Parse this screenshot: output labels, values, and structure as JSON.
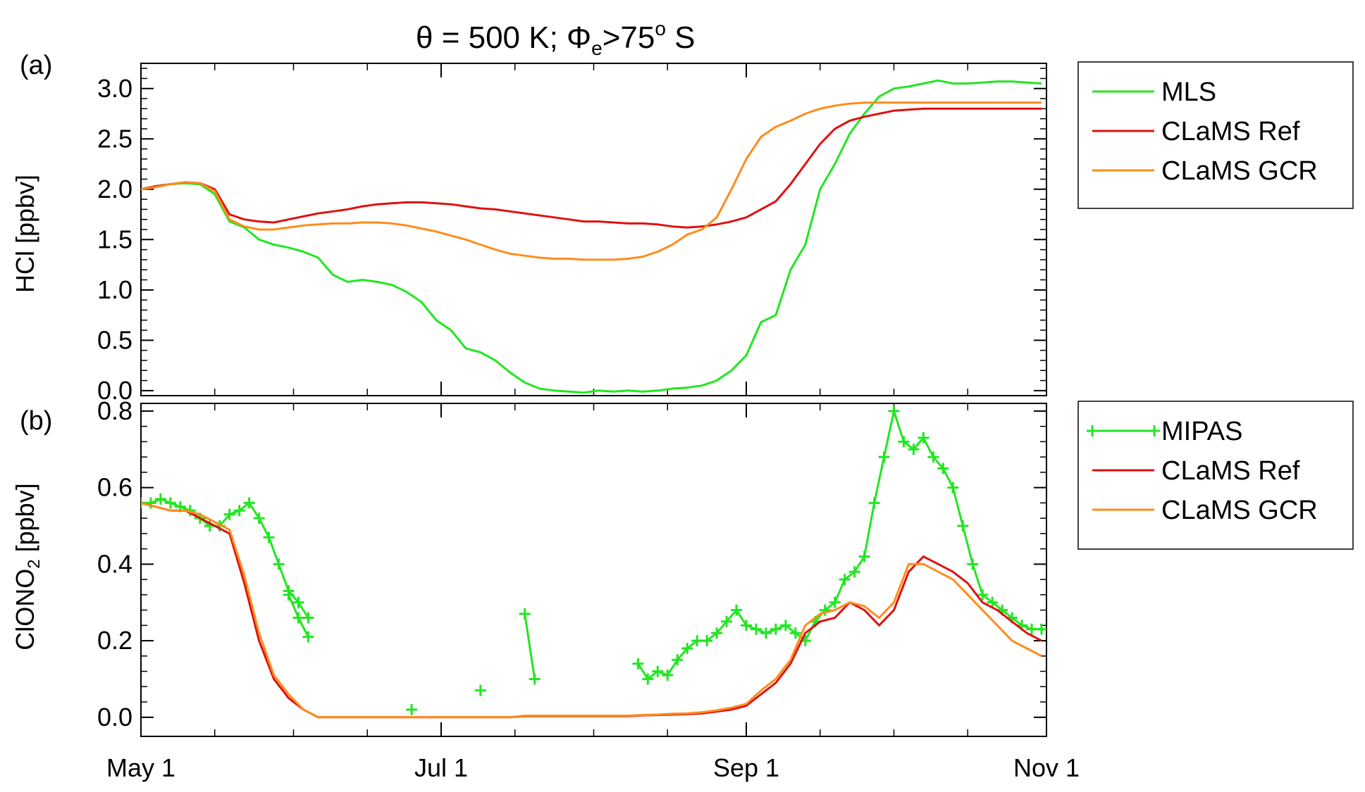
{
  "title": {
    "prefix": "θ = 500 K; Φ",
    "phi_sub": "e",
    "mid": ">75",
    "deg": "o",
    "suffix": " S"
  },
  "colors": {
    "mls": "#22e622",
    "mipas": "#22e622",
    "ref": "#e01010",
    "gcr": "#ff8c1a"
  },
  "chart_data": [
    {
      "panel_tag": "(a)",
      "type": "line",
      "ylabel": "HCl [ppbv]",
      "ylim": [
        -0.05,
        3.25
      ],
      "yticks": [
        "0.0",
        "0.5",
        "1.0",
        "1.5",
        "2.0",
        "2.5",
        "3.0"
      ],
      "xticks": [
        "May 1",
        "Jul 1",
        "Sep 1",
        "Nov 1"
      ],
      "legend_position": "right",
      "series": [
        {
          "name": "MLS",
          "color_key": "mls",
          "x": [
            0,
            3,
            6,
            9,
            12,
            15,
            18,
            21,
            24,
            27,
            30,
            33,
            36,
            39,
            42,
            45,
            48,
            51,
            54,
            57,
            60,
            63,
            66,
            69,
            72,
            75,
            78,
            81,
            84,
            87,
            90,
            93,
            96,
            99,
            102,
            105,
            108,
            111,
            114,
            117,
            120,
            123,
            126,
            129,
            132,
            135,
            138,
            141,
            144,
            147,
            150,
            153,
            156,
            159,
            162,
            165,
            168,
            171,
            174,
            177,
            180,
            183
          ],
          "y": [
            2.0,
            2.03,
            2.05,
            2.06,
            2.05,
            1.95,
            1.68,
            1.62,
            1.5,
            1.45,
            1.42,
            1.38,
            1.32,
            1.15,
            1.08,
            1.1,
            1.08,
            1.05,
            0.98,
            0.88,
            0.7,
            0.6,
            0.42,
            0.38,
            0.3,
            0.18,
            0.08,
            0.02,
            0.0,
            -0.01,
            -0.02,
            0.0,
            -0.01,
            0.0,
            -0.01,
            0.0,
            0.02,
            0.03,
            0.05,
            0.1,
            0.2,
            0.35,
            0.68,
            0.75,
            1.2,
            1.45,
            2.0,
            2.25,
            2.55,
            2.75,
            2.92,
            3.0,
            3.02,
            3.05,
            3.08,
            3.05,
            3.05,
            3.06,
            3.07,
            3.07,
            3.06,
            3.05
          ]
        },
        {
          "name": "CLaMS Ref",
          "color_key": "ref",
          "x": [
            0,
            3,
            6,
            9,
            12,
            15,
            18,
            21,
            24,
            27,
            30,
            33,
            36,
            39,
            42,
            45,
            48,
            51,
            54,
            57,
            60,
            63,
            66,
            69,
            72,
            75,
            78,
            81,
            84,
            87,
            90,
            93,
            96,
            99,
            102,
            105,
            108,
            111,
            114,
            117,
            120,
            123,
            126,
            129,
            132,
            135,
            138,
            141,
            144,
            147,
            150,
            153,
            156,
            159,
            162,
            165,
            168,
            171,
            174,
            177,
            180,
            183
          ],
          "y": [
            2.0,
            2.03,
            2.05,
            2.07,
            2.06,
            2.0,
            1.75,
            1.7,
            1.68,
            1.67,
            1.7,
            1.73,
            1.76,
            1.78,
            1.8,
            1.83,
            1.85,
            1.86,
            1.87,
            1.87,
            1.86,
            1.85,
            1.83,
            1.81,
            1.8,
            1.78,
            1.76,
            1.74,
            1.72,
            1.7,
            1.68,
            1.68,
            1.67,
            1.66,
            1.66,
            1.65,
            1.63,
            1.62,
            1.63,
            1.65,
            1.68,
            1.72,
            1.8,
            1.88,
            2.05,
            2.25,
            2.45,
            2.6,
            2.68,
            2.72,
            2.75,
            2.78,
            2.79,
            2.8,
            2.8,
            2.8,
            2.8,
            2.8,
            2.8,
            2.8,
            2.8,
            2.8
          ]
        },
        {
          "name": "CLaMS GCR",
          "color_key": "gcr",
          "x": [
            0,
            3,
            6,
            9,
            12,
            15,
            18,
            21,
            24,
            27,
            30,
            33,
            36,
            39,
            42,
            45,
            48,
            51,
            54,
            57,
            60,
            63,
            66,
            69,
            72,
            75,
            78,
            81,
            84,
            87,
            90,
            93,
            96,
            99,
            102,
            105,
            108,
            111,
            114,
            117,
            120,
            123,
            126,
            129,
            132,
            135,
            138,
            141,
            144,
            147,
            150,
            153,
            156,
            159,
            162,
            165,
            168,
            171,
            174,
            177,
            180,
            183
          ],
          "y": [
            2.0,
            2.02,
            2.05,
            2.07,
            2.06,
            1.98,
            1.7,
            1.63,
            1.6,
            1.6,
            1.62,
            1.64,
            1.65,
            1.66,
            1.66,
            1.67,
            1.67,
            1.66,
            1.64,
            1.61,
            1.58,
            1.54,
            1.5,
            1.45,
            1.4,
            1.36,
            1.34,
            1.32,
            1.31,
            1.31,
            1.3,
            1.3,
            1.3,
            1.31,
            1.33,
            1.38,
            1.45,
            1.55,
            1.6,
            1.72,
            2.0,
            2.3,
            2.52,
            2.62,
            2.68,
            2.75,
            2.8,
            2.83,
            2.85,
            2.86,
            2.86,
            2.86,
            2.86,
            2.86,
            2.86,
            2.86,
            2.86,
            2.86,
            2.86,
            2.86,
            2.86,
            2.86
          ]
        }
      ]
    },
    {
      "panel_tag": "(b)",
      "type": "line",
      "ylabel_main": "ClONO",
      "ylabel_sub": "2",
      "ylabel_unit": " [ppbv]",
      "ylim": [
        -0.05,
        0.82
      ],
      "yticks": [
        "0.0",
        "0.2",
        "0.4",
        "0.6",
        "0.8"
      ],
      "xticks": [
        "May 1",
        "Jul 1",
        "Sep 1",
        "Nov 1"
      ],
      "legend_position": "right",
      "series": [
        {
          "name": "MIPAS",
          "color_key": "mipas",
          "markers": true,
          "segments": [
            {
              "x": [
                0,
                2,
                4,
                6,
                8,
                10,
                12,
                14,
                16,
                18,
                20,
                22,
                24,
                26,
                28,
                30,
                32,
                34
              ],
              "y": [
                0.56,
                0.56,
                0.57,
                0.56,
                0.55,
                0.54,
                0.52,
                0.5,
                0.5,
                0.53,
                0.54,
                0.56,
                0.52,
                0.47,
                0.4,
                0.33,
                0.3,
                0.26
              ]
            },
            {
              "x": [
                30,
                32,
                34
              ],
              "y": [
                0.32,
                0.26,
                0.21
              ]
            },
            {
              "x": [
                78,
                80
              ],
              "y": [
                0.27,
                0.1
              ]
            },
            {
              "x": [
                55
              ],
              "y": [
                0.02
              ]
            },
            {
              "x": [
                69
              ],
              "y": [
                0.07
              ]
            },
            {
              "x": [
                101,
                103,
                105,
                107,
                109,
                111,
                113,
                115,
                117,
                119,
                121,
                123,
                125,
                127,
                129,
                131,
                133,
                135,
                137,
                139,
                141,
                143,
                145,
                147,
                149,
                151,
                153,
                155,
                157,
                159,
                161,
                163,
                165,
                167,
                169,
                171,
                173,
                175,
                177,
                179,
                181,
                183
              ],
              "y": [
                0.14,
                0.1,
                0.12,
                0.11,
                0.15,
                0.18,
                0.2,
                0.2,
                0.22,
                0.25,
                0.28,
                0.24,
                0.23,
                0.22,
                0.23,
                0.24,
                0.22,
                0.2,
                0.25,
                0.28,
                0.3,
                0.36,
                0.38,
                0.42,
                0.56,
                0.68,
                0.8,
                0.72,
                0.7,
                0.73,
                0.68,
                0.65,
                0.6,
                0.5,
                0.4,
                0.32,
                0.3,
                0.28,
                0.26,
                0.24,
                0.23,
                0.23
              ]
            }
          ]
        },
        {
          "name": "CLaMS Ref",
          "color_key": "ref",
          "x": [
            0,
            3,
            6,
            9,
            12,
            15,
            18,
            21,
            24,
            27,
            30,
            33,
            36,
            39,
            42,
            45,
            48,
            51,
            54,
            57,
            60,
            63,
            66,
            69,
            72,
            75,
            78,
            81,
            84,
            87,
            90,
            93,
            96,
            99,
            102,
            105,
            108,
            111,
            114,
            117,
            120,
            123,
            126,
            129,
            132,
            135,
            138,
            141,
            144,
            147,
            150,
            153,
            156,
            159,
            162,
            165,
            168,
            171,
            174,
            177,
            180,
            183
          ],
          "y": [
            0.56,
            0.55,
            0.54,
            0.54,
            0.52,
            0.5,
            0.48,
            0.35,
            0.2,
            0.1,
            0.05,
            0.02,
            0.0,
            0.0,
            0.0,
            0.0,
            0.0,
            0.0,
            0.0,
            0.0,
            0.0,
            0.0,
            0.0,
            0.0,
            0.0,
            0.0,
            0.003,
            0.003,
            0.003,
            0.003,
            0.003,
            0.003,
            0.003,
            0.003,
            0.005,
            0.006,
            0.007,
            0.008,
            0.01,
            0.015,
            0.02,
            0.03,
            0.06,
            0.09,
            0.14,
            0.22,
            0.25,
            0.26,
            0.3,
            0.28,
            0.24,
            0.28,
            0.38,
            0.42,
            0.4,
            0.38,
            0.35,
            0.3,
            0.28,
            0.25,
            0.22,
            0.2
          ]
        },
        {
          "name": "CLaMS GCR",
          "color_key": "gcr",
          "x": [
            0,
            3,
            6,
            9,
            12,
            15,
            18,
            21,
            24,
            27,
            30,
            33,
            36,
            39,
            42,
            45,
            48,
            51,
            54,
            57,
            60,
            63,
            66,
            69,
            72,
            75,
            78,
            81,
            84,
            87,
            90,
            93,
            96,
            99,
            102,
            105,
            108,
            111,
            114,
            117,
            120,
            123,
            126,
            129,
            132,
            135,
            138,
            141,
            144,
            147,
            150,
            153,
            156,
            159,
            162,
            165,
            168,
            171,
            174,
            177,
            180,
            183
          ],
          "y": [
            0.56,
            0.55,
            0.54,
            0.54,
            0.53,
            0.51,
            0.49,
            0.37,
            0.22,
            0.11,
            0.06,
            0.02,
            0.0,
            0.0,
            0.0,
            0.0,
            0.0,
            0.0,
            0.0,
            0.0,
            0.0,
            0.0,
            0.0,
            0.0,
            0.0,
            0.0,
            0.004,
            0.004,
            0.004,
            0.004,
            0.004,
            0.004,
            0.004,
            0.004,
            0.006,
            0.007,
            0.009,
            0.01,
            0.013,
            0.018,
            0.025,
            0.035,
            0.07,
            0.1,
            0.15,
            0.24,
            0.27,
            0.28,
            0.3,
            0.29,
            0.26,
            0.3,
            0.4,
            0.4,
            0.38,
            0.36,
            0.32,
            0.28,
            0.24,
            0.2,
            0.18,
            0.16
          ]
        }
      ]
    }
  ]
}
